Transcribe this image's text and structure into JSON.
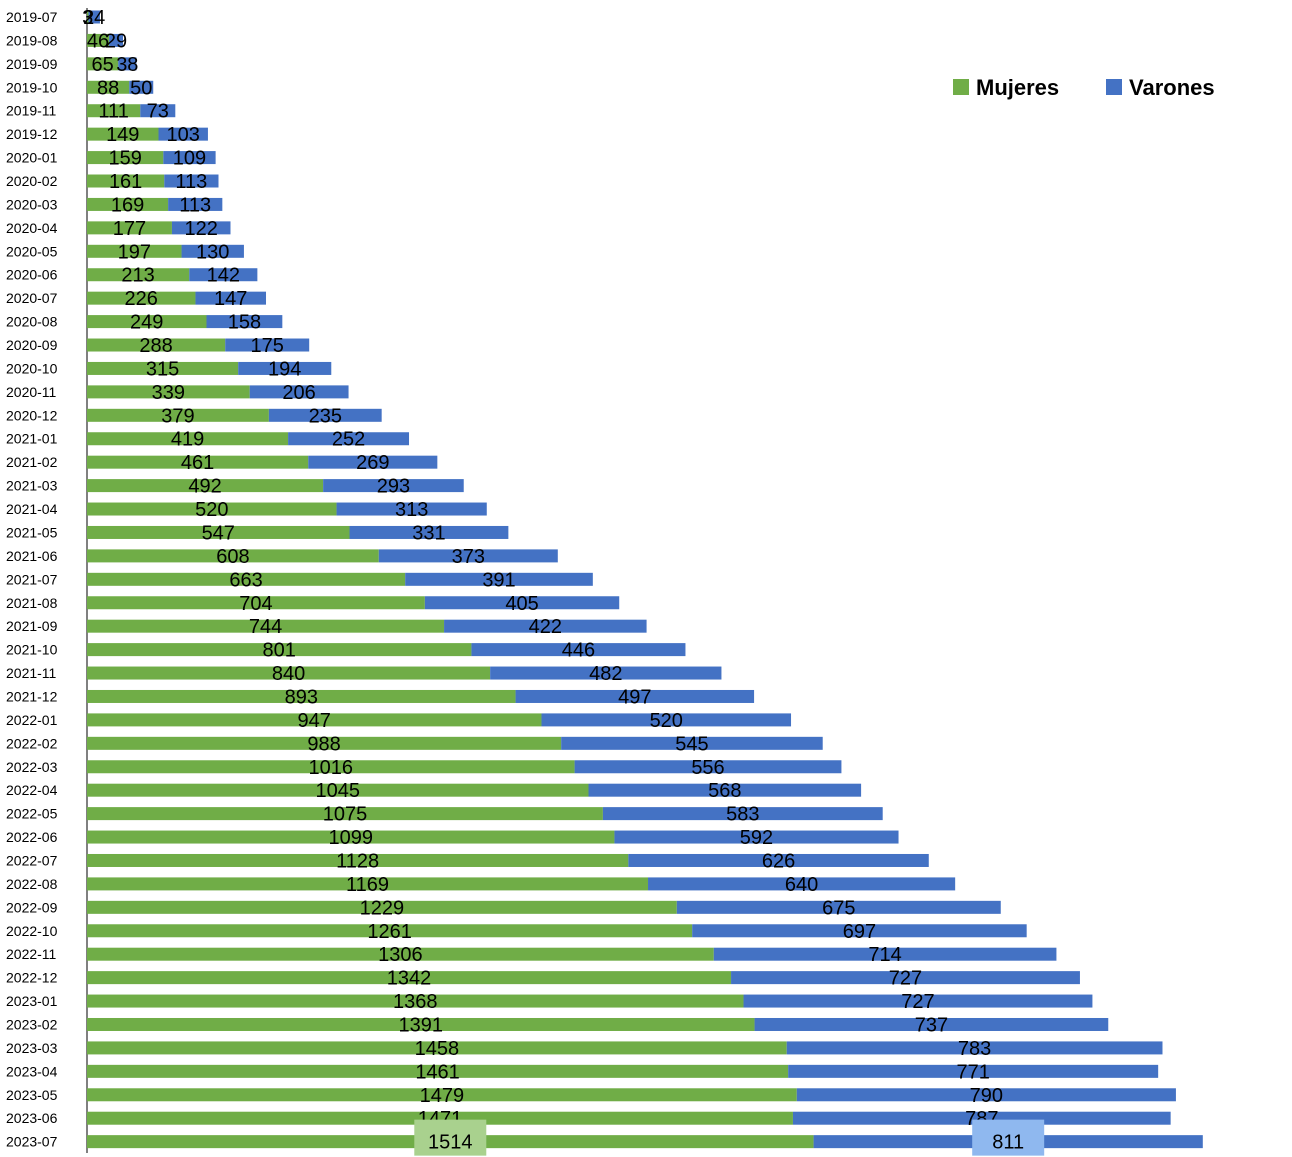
{
  "chart_data": {
    "type": "bar",
    "orientation": "horizontal",
    "stacked": true,
    "categories": [
      "2019-07",
      "2019-08",
      "2019-09",
      "2019-10",
      "2019-11",
      "2019-12",
      "2020-01",
      "2020-02",
      "2020-03",
      "2020-04",
      "2020-05",
      "2020-06",
      "2020-07",
      "2020-08",
      "2020-09",
      "2020-10",
      "2020-11",
      "2020-12",
      "2021-01",
      "2021-02",
      "2021-03",
      "2021-04",
      "2021-05",
      "2021-06",
      "2021-07",
      "2021-08",
      "2021-09",
      "2021-10",
      "2021-11",
      "2021-12",
      "2022-01",
      "2022-02",
      "2022-03",
      "2022-04",
      "2022-05",
      "2022-06",
      "2022-07",
      "2022-08",
      "2022-09",
      "2022-10",
      "2022-11",
      "2022-12",
      "2023-01",
      "2023-02",
      "2023-03",
      "2023-04",
      "2023-05",
      "2023-06",
      "2023-07"
    ],
    "series": [
      {
        "name": "Mujeres",
        "color": "#70ad47",
        "values": [
          3,
          46,
          65,
          88,
          111,
          149,
          159,
          161,
          169,
          177,
          197,
          213,
          226,
          249,
          288,
          315,
          339,
          379,
          419,
          461,
          492,
          520,
          547,
          608,
          663,
          704,
          744,
          801,
          840,
          893,
          947,
          988,
          1016,
          1045,
          1075,
          1099,
          1128,
          1169,
          1229,
          1261,
          1306,
          1342,
          1368,
          1391,
          1458,
          1461,
          1479,
          1471,
          1514
        ]
      },
      {
        "name": "Varones",
        "color": "#4472c4",
        "values": [
          24,
          29,
          38,
          50,
          73,
          103,
          109,
          113,
          113,
          122,
          130,
          142,
          147,
          158,
          175,
          194,
          206,
          235,
          252,
          269,
          293,
          313,
          331,
          373,
          391,
          405,
          422,
          446,
          482,
          497,
          520,
          545,
          556,
          568,
          583,
          592,
          626,
          640,
          675,
          697,
          714,
          727,
          727,
          737,
          783,
          771,
          790,
          787,
          811
        ]
      }
    ],
    "xlim": [
      0,
      2340
    ],
    "grid": false,
    "legend": "top-right",
    "title": "",
    "xlabel": "",
    "ylabel": "",
    "highlight_labels_color": {
      "Mujeres": "#a9d18e",
      "Varones": "#8fb8ef"
    }
  }
}
